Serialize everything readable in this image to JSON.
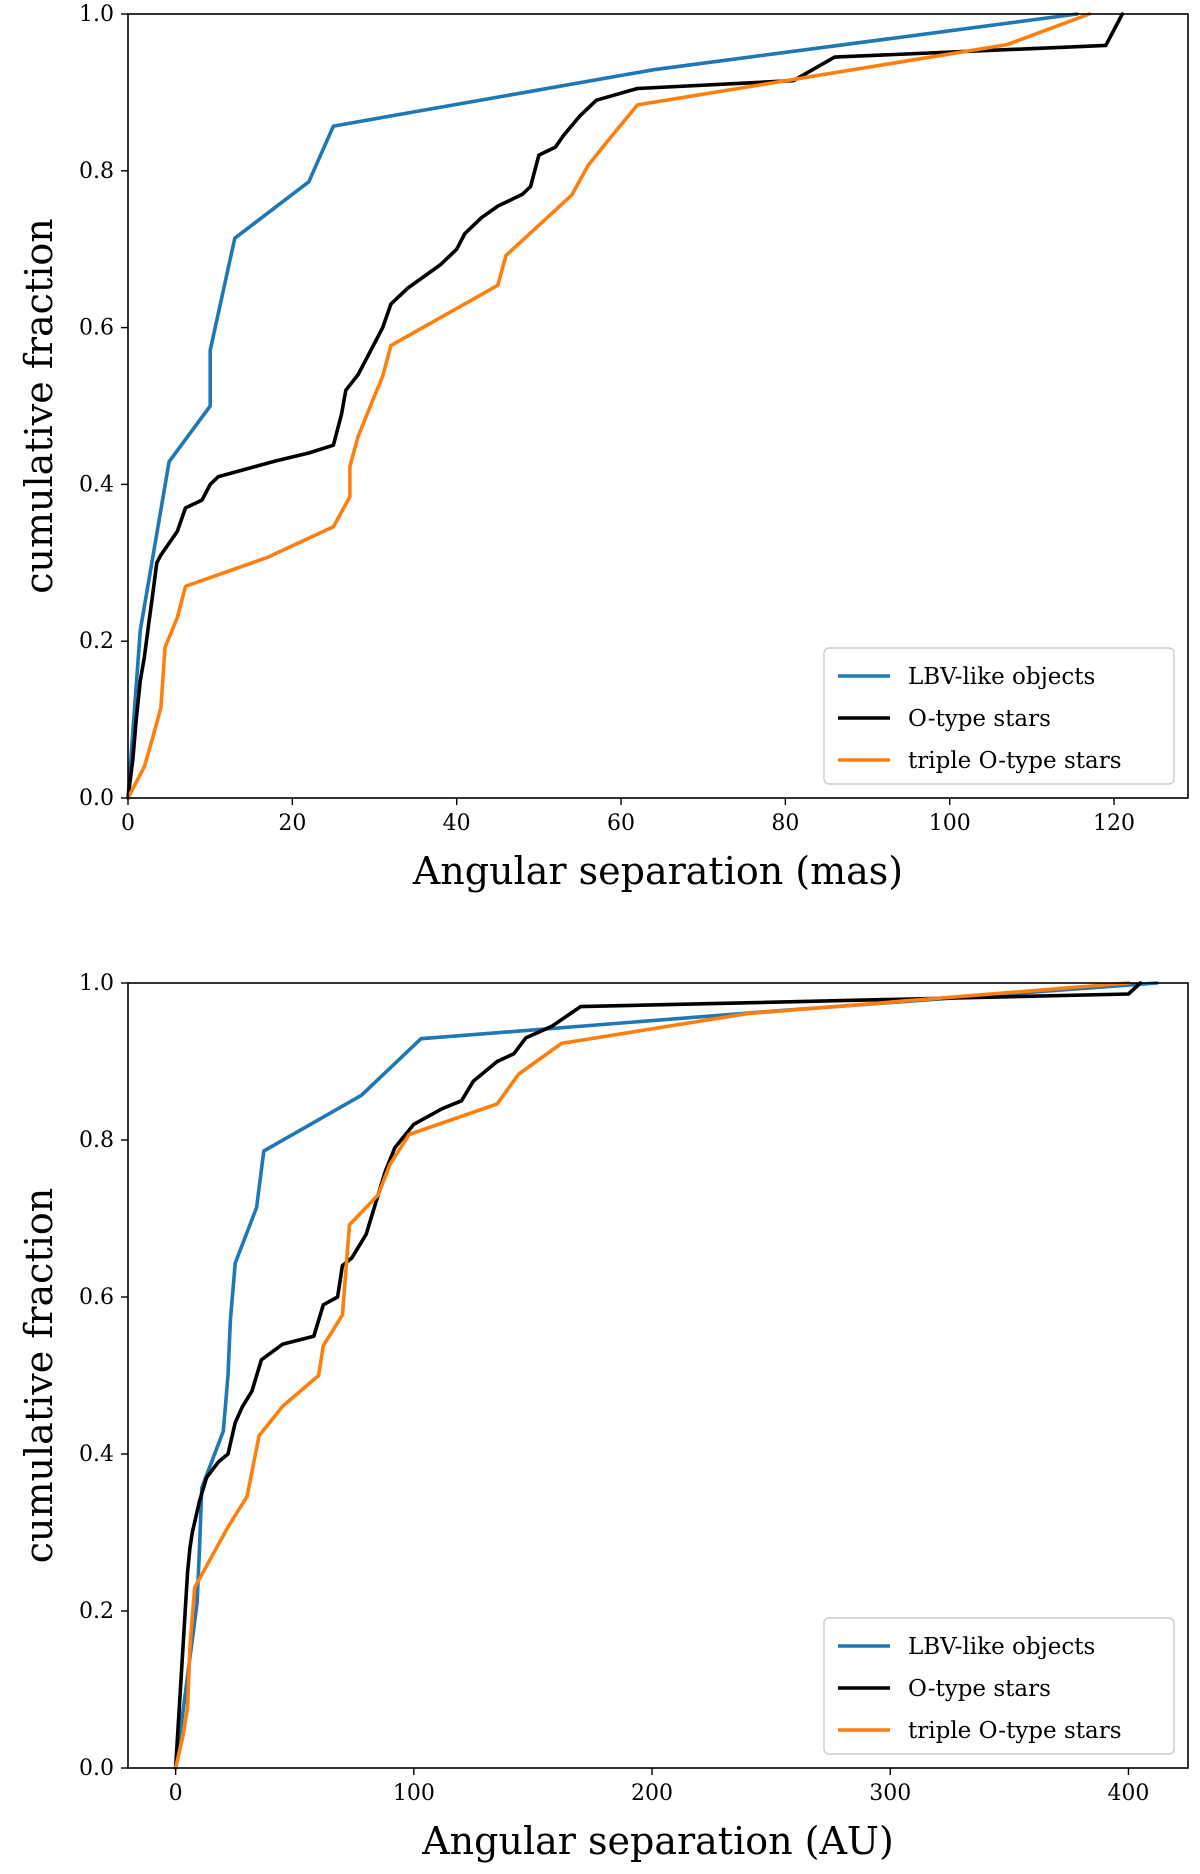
{
  "colors": {
    "lbv": "#1f77b4",
    "otype": "#000000",
    "triple": "#ff7f0e"
  },
  "chart_data": [
    {
      "type": "line",
      "xlabel": "Angular separation (mas)",
      "ylabel": "cumulative fraction",
      "xlim": [
        0,
        129
      ],
      "ylim": [
        0,
        1.0
      ],
      "xticks": [
        0,
        20,
        40,
        60,
        80,
        100,
        120
      ],
      "yticks": [
        0.0,
        0.2,
        0.4,
        0.6,
        0.8,
        1.0
      ],
      "legend": "lower-right",
      "series": [
        {
          "name": "LBV-like objects",
          "color": "#1f77b4",
          "points": [
            [
              0,
              0
            ],
            [
              1.5,
              0.214
            ],
            [
              5,
              0.429
            ],
            [
              10,
              0.5
            ],
            [
              10,
              0.571
            ],
            [
              13,
              0.714
            ],
            [
              22,
              0.786
            ],
            [
              25,
              0.857
            ],
            [
              64,
              0.929
            ],
            [
              115.5,
              1.0
            ]
          ]
        },
        {
          "name": "O-type stars",
          "color": "#000000",
          "points": [
            [
              0,
              0
            ],
            [
              0.6,
              0.05
            ],
            [
              1,
              0.1
            ],
            [
              1.5,
              0.15
            ],
            [
              2,
              0.18
            ],
            [
              2.5,
              0.22
            ],
            [
              3,
              0.26
            ],
            [
              3.5,
              0.3
            ],
            [
              4,
              0.31
            ],
            [
              6,
              0.34
            ],
            [
              7,
              0.37
            ],
            [
              9,
              0.38
            ],
            [
              10,
              0.4
            ],
            [
              11,
              0.41
            ],
            [
              18,
              0.43
            ],
            [
              22,
              0.44
            ],
            [
              25,
              0.45
            ],
            [
              26,
              0.49
            ],
            [
              26.5,
              0.52
            ],
            [
              28,
              0.54
            ],
            [
              29,
              0.56
            ],
            [
              30,
              0.58
            ],
            [
              31,
              0.6
            ],
            [
              32,
              0.63
            ],
            [
              34,
              0.65
            ],
            [
              38,
              0.68
            ],
            [
              40,
              0.7
            ],
            [
              41,
              0.72
            ],
            [
              42,
              0.73
            ],
            [
              43,
              0.74
            ],
            [
              45,
              0.755
            ],
            [
              48,
              0.77
            ],
            [
              49,
              0.78
            ],
            [
              50,
              0.82
            ],
            [
              52,
              0.83
            ],
            [
              53,
              0.845
            ],
            [
              55,
              0.87
            ],
            [
              57,
              0.89
            ],
            [
              62,
              0.905
            ],
            [
              81,
              0.915
            ],
            [
              86,
              0.945
            ],
            [
              119,
              0.96
            ],
            [
              121,
              1.0
            ]
          ]
        },
        {
          "name": "triple O-type stars",
          "color": "#ff7f0e",
          "points": [
            [
              0,
              0
            ],
            [
              2,
              0.04
            ],
            [
              3,
              0.077
            ],
            [
              4,
              0.115
            ],
            [
              4.5,
              0.192
            ],
            [
              6,
              0.23
            ],
            [
              7,
              0.27
            ],
            [
              17,
              0.307
            ],
            [
              25,
              0.346
            ],
            [
              27,
              0.384
            ],
            [
              27,
              0.423
            ],
            [
              28,
              0.461
            ],
            [
              29.5,
              0.5
            ],
            [
              31,
              0.538
            ],
            [
              32,
              0.577
            ],
            [
              45,
              0.654
            ],
            [
              46,
              0.692
            ],
            [
              54,
              0.769
            ],
            [
              56,
              0.807
            ],
            [
              59,
              0.846
            ],
            [
              62,
              0.884
            ],
            [
              107,
              0.961
            ],
            [
              117,
              1.0
            ]
          ]
        }
      ]
    },
    {
      "type": "line",
      "xlabel": "Angular separation (AU)",
      "ylabel": "cumulative fraction",
      "xlim": [
        -20,
        425
      ],
      "ylim": [
        0,
        1.0
      ],
      "xticks": [
        0,
        100,
        200,
        300,
        400
      ],
      "yticks": [
        0.0,
        0.2,
        0.4,
        0.6,
        0.8,
        1.0
      ],
      "legend": "lower-right",
      "series": [
        {
          "name": "LBV-like objects",
          "color": "#1f77b4",
          "points": [
            [
              0,
              0
            ],
            [
              3,
              0.07
            ],
            [
              6,
              0.14
            ],
            [
              9,
              0.21
            ],
            [
              10,
              0.28
            ],
            [
              11,
              0.357
            ],
            [
              20,
              0.429
            ],
            [
              22,
              0.5
            ],
            [
              23,
              0.571
            ],
            [
              25,
              0.643
            ],
            [
              34,
              0.714
            ],
            [
              37,
              0.786
            ],
            [
              78,
              0.857
            ],
            [
              103,
              0.929
            ],
            [
              250,
              0.964
            ],
            [
              412,
              1.0
            ]
          ]
        },
        {
          "name": "O-type stars",
          "color": "#000000",
          "points": [
            [
              0,
              0
            ],
            [
              1,
              0.05
            ],
            [
              2,
              0.1
            ],
            [
              3,
              0.15
            ],
            [
              4,
              0.2
            ],
            [
              5,
              0.25
            ],
            [
              6,
              0.28
            ],
            [
              7,
              0.3
            ],
            [
              10,
              0.34
            ],
            [
              13,
              0.37
            ],
            [
              18,
              0.39
            ],
            [
              22,
              0.4
            ],
            [
              25,
              0.44
            ],
            [
              28,
              0.46
            ],
            [
              32,
              0.48
            ],
            [
              36,
              0.52
            ],
            [
              45,
              0.54
            ],
            [
              58,
              0.55
            ],
            [
              62,
              0.59
            ],
            [
              68,
              0.6
            ],
            [
              70,
              0.64
            ],
            [
              74,
              0.65
            ],
            [
              80,
              0.68
            ],
            [
              84,
              0.72
            ],
            [
              88,
              0.76
            ],
            [
              92,
              0.79
            ],
            [
              100,
              0.82
            ],
            [
              112,
              0.84
            ],
            [
              120,
              0.85
            ],
            [
              125,
              0.875
            ],
            [
              135,
              0.9
            ],
            [
              142,
              0.91
            ],
            [
              147,
              0.93
            ],
            [
              158,
              0.945
            ],
            [
              170,
              0.97
            ],
            [
              400,
              0.986
            ],
            [
              405,
              1.0
            ]
          ]
        },
        {
          "name": "triple O-type stars",
          "color": "#ff7f0e",
          "points": [
            [
              0,
              0
            ],
            [
              3,
              0.04
            ],
            [
              5,
              0.077
            ],
            [
              6,
              0.154
            ],
            [
              8,
              0.23
            ],
            [
              22,
              0.307
            ],
            [
              30,
              0.346
            ],
            [
              35,
              0.423
            ],
            [
              45,
              0.461
            ],
            [
              60,
              0.5
            ],
            [
              62,
              0.538
            ],
            [
              70,
              0.577
            ],
            [
              72,
              0.654
            ],
            [
              73,
              0.692
            ],
            [
              85,
              0.73
            ],
            [
              90,
              0.769
            ],
            [
              98,
              0.807
            ],
            [
              135,
              0.846
            ],
            [
              144,
              0.884
            ],
            [
              162,
              0.923
            ],
            [
              240,
              0.961
            ],
            [
              400,
              1.0
            ]
          ]
        }
      ]
    }
  ]
}
